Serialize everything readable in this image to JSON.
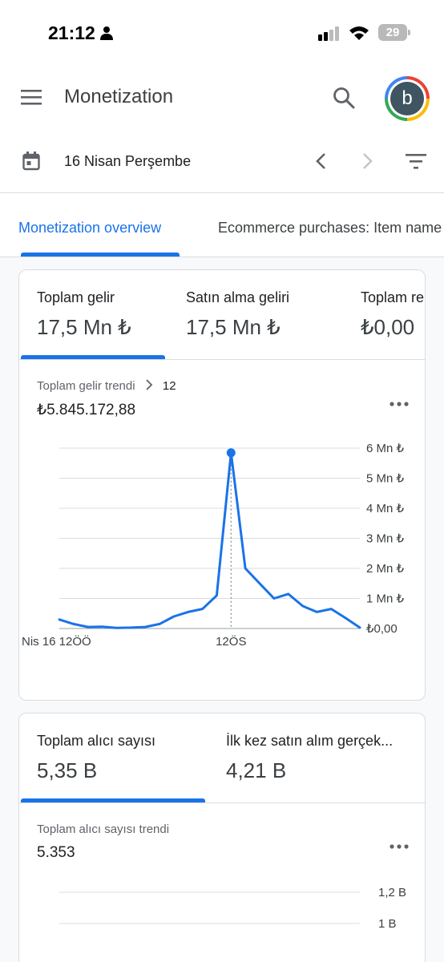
{
  "status_bar": {
    "time": "21:12",
    "battery": "29"
  },
  "app_bar": {
    "title": "Monetization",
    "avatar_letter": "b"
  },
  "date_bar": {
    "date": "16 Nisan Perşembe"
  },
  "tabs": [
    {
      "label": "Monetization overview",
      "active": true
    },
    {
      "label": "Ecommerce purchases: Item name",
      "active": false
    }
  ],
  "card1": {
    "metrics": [
      {
        "label": "Toplam gelir",
        "value": "17,5 Mn ₺"
      },
      {
        "label": "Satın alma geliri",
        "value": "17,5 Mn ₺"
      },
      {
        "label": "Toplam reklam geliri",
        "value": "₺0,00"
      }
    ],
    "trend": {
      "label": "Toplam gelir trendi",
      "suffix": "12",
      "value": "₺5.845.172,88"
    }
  },
  "card2": {
    "metrics": [
      {
        "label": "Toplam alıcı sayısı",
        "value": "5,35 B"
      },
      {
        "label": "İlk kez satın alım gerçek...",
        "value": "4,21 B"
      }
    ],
    "trend": {
      "label": "Toplam alıcı sayısı trendi",
      "value": "5.353"
    }
  },
  "chart_data": [
    {
      "type": "line",
      "title": "Toplam gelir trendi",
      "x_ticks": [
        "Nis 16 12ÖÖ",
        "12ÖS"
      ],
      "y_ticks": [
        "₺0,00",
        "1 Mn ₺",
        "2 Mn ₺",
        "3 Mn ₺",
        "4 Mn ₺",
        "5 Mn ₺",
        "6 Mn ₺"
      ],
      "ylim": [
        0,
        6000000
      ],
      "x": [
        "00:00",
        "01:00",
        "02:00",
        "03:00",
        "04:00",
        "05:00",
        "06:00",
        "07:00",
        "08:00",
        "09:00",
        "10:00",
        "11:00",
        "12:00",
        "13:00",
        "14:00",
        "15:00",
        "16:00",
        "17:00",
        "18:00",
        "19:00",
        "20:00",
        "21:00"
      ],
      "series": [
        {
          "values": [
            300000,
            150000,
            50000,
            60000,
            20000,
            30000,
            50000,
            150000,
            400000,
            550000,
            650000,
            1100000,
            5845172.88,
            2000000,
            1500000,
            1000000,
            1150000,
            750000,
            550000,
            650000,
            350000,
            30000
          ]
        }
      ],
      "highlight": {
        "x": "12:00",
        "value": 5845172.88
      },
      "grid": true,
      "accent_color": "#1a73e8"
    },
    {
      "type": "line",
      "title": "Toplam alıcı sayısı trendi",
      "y_ticks": [
        "1 B",
        "1,2 B"
      ],
      "grid": true
    }
  ],
  "colors": {
    "accent": "#1a73e8",
    "text": "#202124",
    "muted": "#5f6368",
    "divider": "#dadce0"
  }
}
